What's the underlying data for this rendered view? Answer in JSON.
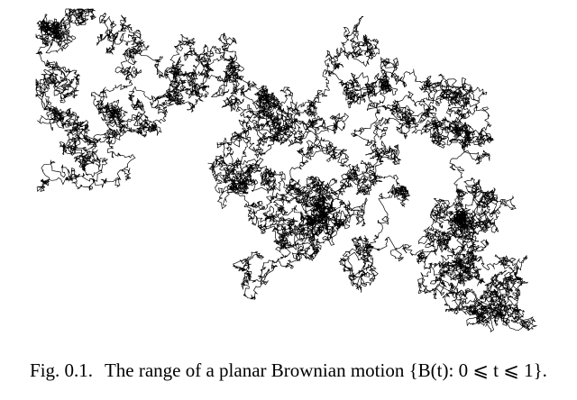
{
  "figure": {
    "label": "Fig. 0.1.",
    "caption": "The range of a planar Brownian motion",
    "formula": "{B(t): 0 ⩽ t ⩽ 1}."
  },
  "colors": {
    "path": "#000000",
    "background": "#ffffff"
  }
}
